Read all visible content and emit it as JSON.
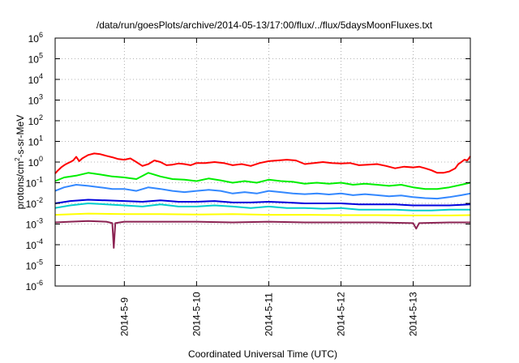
{
  "chart_data": {
    "type": "line",
    "title": "/data/run/goesPlots/archive/2014-05-13/17:00/flux/../flux/5daysMoonFluxes.txt",
    "xlabel": "Coordinated Universal Time (UTC)",
    "ylabel": "protons/cm2-s-sr-MeV",
    "ylabel_parts": {
      "base": "protons/cm",
      "sup": "2",
      "rest": "-s-sr-MeV"
    },
    "y_scale": "log",
    "ylim": [
      1e-06,
      1000000.0
    ],
    "y_ticks": [
      {
        "value": 1e-06,
        "base": "10",
        "exp": "-6"
      },
      {
        "value": 1e-05,
        "base": "10",
        "exp": "-5"
      },
      {
        "value": 0.0001,
        "base": "10",
        "exp": "-4"
      },
      {
        "value": 0.001,
        "base": "10",
        "exp": "-3"
      },
      {
        "value": 0.01,
        "base": "10",
        "exp": "-2"
      },
      {
        "value": 0.1,
        "base": "10",
        "exp": "-1"
      },
      {
        "value": 1.0,
        "base": "10",
        "exp": "0"
      },
      {
        "value": 10.0,
        "base": "10",
        "exp": "1"
      },
      {
        "value": 100.0,
        "base": "10",
        "exp": "2"
      },
      {
        "value": 1000.0,
        "base": "10",
        "exp": "3"
      },
      {
        "value": 10000.0,
        "base": "10",
        "exp": "4"
      },
      {
        "value": 100000.0,
        "base": "10",
        "exp": "5"
      },
      {
        "value": 1000000.0,
        "base": "10",
        "exp": "6"
      }
    ],
    "xlim": [
      "2014-05-08T01:00",
      "2014-05-13T19:00"
    ],
    "x_ticks": [
      {
        "value": "2014-05-09",
        "label": "2014-5-9"
      },
      {
        "value": "2014-05-10",
        "label": "2014-5-10"
      },
      {
        "value": "2014-05-11",
        "label": "2014-5-11"
      },
      {
        "value": "2014-05-12",
        "label": "2014-5-12"
      },
      {
        "value": "2014-05-13",
        "label": "2014-5-13"
      }
    ],
    "grid": true,
    "legend": "none",
    "series": [
      {
        "color": "#ff0000",
        "points": [
          [
            "2014-05-08T01:00",
            0.28
          ],
          [
            "2014-05-08T02:00",
            0.4
          ],
          [
            "2014-05-08T03:00",
            0.55
          ],
          [
            "2014-05-08T04:00",
            0.7
          ],
          [
            "2014-05-08T05:00",
            0.85
          ],
          [
            "2014-05-08T06:00",
            1.0
          ],
          [
            "2014-05-08T07:00",
            1.2
          ],
          [
            "2014-05-08T08:00",
            1.8
          ],
          [
            "2014-05-08T09:00",
            1.1
          ],
          [
            "2014-05-08T10:00",
            1.5
          ],
          [
            "2014-05-08T12:00",
            2.2
          ],
          [
            "2014-05-08T14:00",
            2.6
          ],
          [
            "2014-05-08T16:00",
            2.4
          ],
          [
            "2014-05-08T18:00",
            2.0
          ],
          [
            "2014-05-08T20:00",
            1.7
          ],
          [
            "2014-05-08T22:00",
            1.4
          ],
          [
            "2014-05-09T00:00",
            1.3
          ],
          [
            "2014-05-09T02:00",
            1.5
          ],
          [
            "2014-05-09T04:00",
            1.0
          ],
          [
            "2014-05-09T06:00",
            0.65
          ],
          [
            "2014-05-09T08:00",
            0.8
          ],
          [
            "2014-05-09T10:00",
            1.2
          ],
          [
            "2014-05-09T12:00",
            1.0
          ],
          [
            "2014-05-09T14:00",
            0.7
          ],
          [
            "2014-05-09T16:00",
            0.75
          ],
          [
            "2014-05-09T18:00",
            0.85
          ],
          [
            "2014-05-09T20:00",
            0.8
          ],
          [
            "2014-05-09T22:00",
            0.7
          ],
          [
            "2014-05-10T00:00",
            0.9
          ],
          [
            "2014-05-10T03:00",
            0.9
          ],
          [
            "2014-05-10T06:00",
            1.0
          ],
          [
            "2014-05-10T09:00",
            0.9
          ],
          [
            "2014-05-10T12:00",
            0.7
          ],
          [
            "2014-05-10T15:00",
            0.8
          ],
          [
            "2014-05-10T18:00",
            0.65
          ],
          [
            "2014-05-10T21:00",
            0.9
          ],
          [
            "2014-05-11T00:00",
            1.1
          ],
          [
            "2014-05-11T03:00",
            1.2
          ],
          [
            "2014-05-11T06:00",
            1.3
          ],
          [
            "2014-05-11T09:00",
            1.2
          ],
          [
            "2014-05-11T12:00",
            0.8
          ],
          [
            "2014-05-11T15:00",
            0.9
          ],
          [
            "2014-05-11T18:00",
            1.0
          ],
          [
            "2014-05-11T21:00",
            0.9
          ],
          [
            "2014-05-12T00:00",
            0.85
          ],
          [
            "2014-05-12T03:00",
            0.9
          ],
          [
            "2014-05-12T06:00",
            0.7
          ],
          [
            "2014-05-12T09:00",
            0.75
          ],
          [
            "2014-05-12T12:00",
            0.8
          ],
          [
            "2014-05-12T15:00",
            0.65
          ],
          [
            "2014-05-12T18:00",
            0.5
          ],
          [
            "2014-05-12T21:00",
            0.6
          ],
          [
            "2014-05-13T00:00",
            0.55
          ],
          [
            "2014-05-13T02:00",
            0.6
          ],
          [
            "2014-05-13T04:00",
            0.5
          ],
          [
            "2014-05-13T06:00",
            0.4
          ],
          [
            "2014-05-13T08:00",
            0.3
          ],
          [
            "2014-05-13T10:00",
            0.3
          ],
          [
            "2014-05-13T12:00",
            0.35
          ],
          [
            "2014-05-13T14:00",
            0.5
          ],
          [
            "2014-05-13T15:00",
            0.8
          ],
          [
            "2014-05-13T16:00",
            1.0
          ],
          [
            "2014-05-13T17:00",
            1.3
          ],
          [
            "2014-05-13T18:00",
            1.2
          ],
          [
            "2014-05-13T19:00",
            1.9
          ]
        ]
      },
      {
        "color": "#00ee00",
        "points": [
          [
            "2014-05-08T01:00",
            0.12
          ],
          [
            "2014-05-08T04:00",
            0.18
          ],
          [
            "2014-05-08T08:00",
            0.22
          ],
          [
            "2014-05-08T12:00",
            0.3
          ],
          [
            "2014-05-08T16:00",
            0.25
          ],
          [
            "2014-05-08T20:00",
            0.2
          ],
          [
            "2014-05-09T00:00",
            0.18
          ],
          [
            "2014-05-09T04:00",
            0.15
          ],
          [
            "2014-05-09T08:00",
            0.3
          ],
          [
            "2014-05-09T12:00",
            0.2
          ],
          [
            "2014-05-09T16:00",
            0.15
          ],
          [
            "2014-05-09T20:00",
            0.14
          ],
          [
            "2014-05-10T00:00",
            0.12
          ],
          [
            "2014-05-10T04:00",
            0.16
          ],
          [
            "2014-05-10T08:00",
            0.13
          ],
          [
            "2014-05-10T12:00",
            0.1
          ],
          [
            "2014-05-10T16:00",
            0.12
          ],
          [
            "2014-05-10T20:00",
            0.1
          ],
          [
            "2014-05-11T00:00",
            0.14
          ],
          [
            "2014-05-11T04:00",
            0.12
          ],
          [
            "2014-05-11T08:00",
            0.11
          ],
          [
            "2014-05-11T12:00",
            0.09
          ],
          [
            "2014-05-11T16:00",
            0.1
          ],
          [
            "2014-05-11T20:00",
            0.09
          ],
          [
            "2014-05-12T00:00",
            0.1
          ],
          [
            "2014-05-12T04:00",
            0.08
          ],
          [
            "2014-05-12T08:00",
            0.09
          ],
          [
            "2014-05-12T12:00",
            0.08
          ],
          [
            "2014-05-12T16:00",
            0.07
          ],
          [
            "2014-05-12T20:00",
            0.08
          ],
          [
            "2014-05-13T00:00",
            0.06
          ],
          [
            "2014-05-13T04:00",
            0.05
          ],
          [
            "2014-05-13T08:00",
            0.05
          ],
          [
            "2014-05-13T12:00",
            0.06
          ],
          [
            "2014-05-13T16:00",
            0.08
          ],
          [
            "2014-05-13T19:00",
            0.1
          ]
        ]
      },
      {
        "color": "#3388ff",
        "points": [
          [
            "2014-05-08T01:00",
            0.04
          ],
          [
            "2014-05-08T04:00",
            0.06
          ],
          [
            "2014-05-08T08:00",
            0.08
          ],
          [
            "2014-05-08T12:00",
            0.07
          ],
          [
            "2014-05-08T16:00",
            0.06
          ],
          [
            "2014-05-08T20:00",
            0.05
          ],
          [
            "2014-05-09T00:00",
            0.05
          ],
          [
            "2014-05-09T04:00",
            0.04
          ],
          [
            "2014-05-09T08:00",
            0.06
          ],
          [
            "2014-05-09T12:00",
            0.05
          ],
          [
            "2014-05-09T16:00",
            0.04
          ],
          [
            "2014-05-09T20:00",
            0.035
          ],
          [
            "2014-05-10T00:00",
            0.04
          ],
          [
            "2014-05-10T04:00",
            0.045
          ],
          [
            "2014-05-10T08:00",
            0.04
          ],
          [
            "2014-05-10T12:00",
            0.03
          ],
          [
            "2014-05-10T16:00",
            0.035
          ],
          [
            "2014-05-10T20:00",
            0.03
          ],
          [
            "2014-05-11T00:00",
            0.04
          ],
          [
            "2014-05-11T04:00",
            0.035
          ],
          [
            "2014-05-11T08:00",
            0.03
          ],
          [
            "2014-05-11T12:00",
            0.028
          ],
          [
            "2014-05-11T16:00",
            0.03
          ],
          [
            "2014-05-11T20:00",
            0.027
          ],
          [
            "2014-05-12T00:00",
            0.03
          ],
          [
            "2014-05-12T04:00",
            0.025
          ],
          [
            "2014-05-12T08:00",
            0.028
          ],
          [
            "2014-05-12T12:00",
            0.025
          ],
          [
            "2014-05-12T16:00",
            0.022
          ],
          [
            "2014-05-12T20:00",
            0.024
          ],
          [
            "2014-05-13T00:00",
            0.02
          ],
          [
            "2014-05-13T04:00",
            0.018
          ],
          [
            "2014-05-13T08:00",
            0.017
          ],
          [
            "2014-05-13T12:00",
            0.02
          ],
          [
            "2014-05-13T16:00",
            0.025
          ],
          [
            "2014-05-13T19:00",
            0.03
          ]
        ]
      },
      {
        "color": "#0000dd",
        "points": [
          [
            "2014-05-08T01:00",
            0.01
          ],
          [
            "2014-05-08T06:00",
            0.013
          ],
          [
            "2014-05-08T12:00",
            0.015
          ],
          [
            "2014-05-08T18:00",
            0.014
          ],
          [
            "2014-05-09T00:00",
            0.013
          ],
          [
            "2014-05-09T06:00",
            0.012
          ],
          [
            "2014-05-09T12:00",
            0.014
          ],
          [
            "2014-05-09T18:00",
            0.012
          ],
          [
            "2014-05-10T00:00",
            0.012
          ],
          [
            "2014-05-10T06:00",
            0.013
          ],
          [
            "2014-05-10T12:00",
            0.011
          ],
          [
            "2014-05-10T18:00",
            0.011
          ],
          [
            "2014-05-11T00:00",
            0.012
          ],
          [
            "2014-05-11T06:00",
            0.011
          ],
          [
            "2014-05-11T12:00",
            0.01
          ],
          [
            "2014-05-11T18:00",
            0.01
          ],
          [
            "2014-05-12T00:00",
            0.01
          ],
          [
            "2014-05-12T06:00",
            0.009
          ],
          [
            "2014-05-12T12:00",
            0.009
          ],
          [
            "2014-05-12T18:00",
            0.009
          ],
          [
            "2014-05-13T00:00",
            0.008
          ],
          [
            "2014-05-13T06:00",
            0.008
          ],
          [
            "2014-05-13T12:00",
            0.008
          ],
          [
            "2014-05-13T19:00",
            0.009
          ]
        ]
      },
      {
        "color": "#00cccc",
        "points": [
          [
            "2014-05-08T01:00",
            0.006
          ],
          [
            "2014-05-08T06:00",
            0.008
          ],
          [
            "2014-05-08T12:00",
            0.01
          ],
          [
            "2014-05-08T18:00",
            0.009
          ],
          [
            "2014-05-09T00:00",
            0.008
          ],
          [
            "2014-05-09T06:00",
            0.007
          ],
          [
            "2014-05-09T12:00",
            0.009
          ],
          [
            "2014-05-09T18:00",
            0.007
          ],
          [
            "2014-05-10T00:00",
            0.007
          ],
          [
            "2014-05-10T06:00",
            0.008
          ],
          [
            "2014-05-10T12:00",
            0.007
          ],
          [
            "2014-05-10T18:00",
            0.006
          ],
          [
            "2014-05-11T00:00",
            0.007
          ],
          [
            "2014-05-11T06:00",
            0.006
          ],
          [
            "2014-05-11T12:00",
            0.006
          ],
          [
            "2014-05-11T18:00",
            0.0055
          ],
          [
            "2014-05-12T00:00",
            0.006
          ],
          [
            "2014-05-12T06:00",
            0.005
          ],
          [
            "2014-05-12T12:00",
            0.005
          ],
          [
            "2014-05-12T18:00",
            0.005
          ],
          [
            "2014-05-13T00:00",
            0.0045
          ],
          [
            "2014-05-13T06:00",
            0.0045
          ],
          [
            "2014-05-13T12:00",
            0.005
          ],
          [
            "2014-05-13T19:00",
            0.005
          ]
        ]
      },
      {
        "color": "#ffff00",
        "points": [
          [
            "2014-05-08T01:00",
            0.0028
          ],
          [
            "2014-05-08T12:00",
            0.0032
          ],
          [
            "2014-05-09T00:00",
            0.003
          ],
          [
            "2014-05-09T12:00",
            0.003
          ],
          [
            "2014-05-10T00:00",
            0.0029
          ],
          [
            "2014-05-10T12:00",
            0.003
          ],
          [
            "2014-05-11T00:00",
            0.0028
          ],
          [
            "2014-05-11T12:00",
            0.0028
          ],
          [
            "2014-05-12T00:00",
            0.0027
          ],
          [
            "2014-05-12T12:00",
            0.0027
          ],
          [
            "2014-05-13T00:00",
            0.0026
          ],
          [
            "2014-05-13T12:00",
            0.0026
          ],
          [
            "2014-05-13T19:00",
            0.0027
          ]
        ]
      },
      {
        "color": "#8b2252",
        "points": [
          [
            "2014-05-08T01:00",
            0.0012
          ],
          [
            "2014-05-08T06:00",
            0.0013
          ],
          [
            "2014-05-08T12:00",
            0.0014
          ],
          [
            "2014-05-08T18:00",
            0.0013
          ],
          [
            "2014-05-08T20:00",
            0.0011
          ],
          [
            "2014-05-08T20:30",
            7e-05
          ],
          [
            "2014-05-08T21:00",
            0.0011
          ],
          [
            "2014-05-09T00:00",
            0.0013
          ],
          [
            "2014-05-09T12:00",
            0.0013
          ],
          [
            "2014-05-10T00:00",
            0.0013
          ],
          [
            "2014-05-10T12:00",
            0.0012
          ],
          [
            "2014-05-11T00:00",
            0.0013
          ],
          [
            "2014-05-11T12:00",
            0.0012
          ],
          [
            "2014-05-12T00:00",
            0.0012
          ],
          [
            "2014-05-12T12:00",
            0.0012
          ],
          [
            "2014-05-13T00:00",
            0.0011
          ],
          [
            "2014-05-13T01:00",
            0.0006
          ],
          [
            "2014-05-13T02:00",
            0.0011
          ],
          [
            "2014-05-13T12:00",
            0.0012
          ],
          [
            "2014-05-13T19:00",
            0.0012
          ]
        ]
      }
    ]
  }
}
